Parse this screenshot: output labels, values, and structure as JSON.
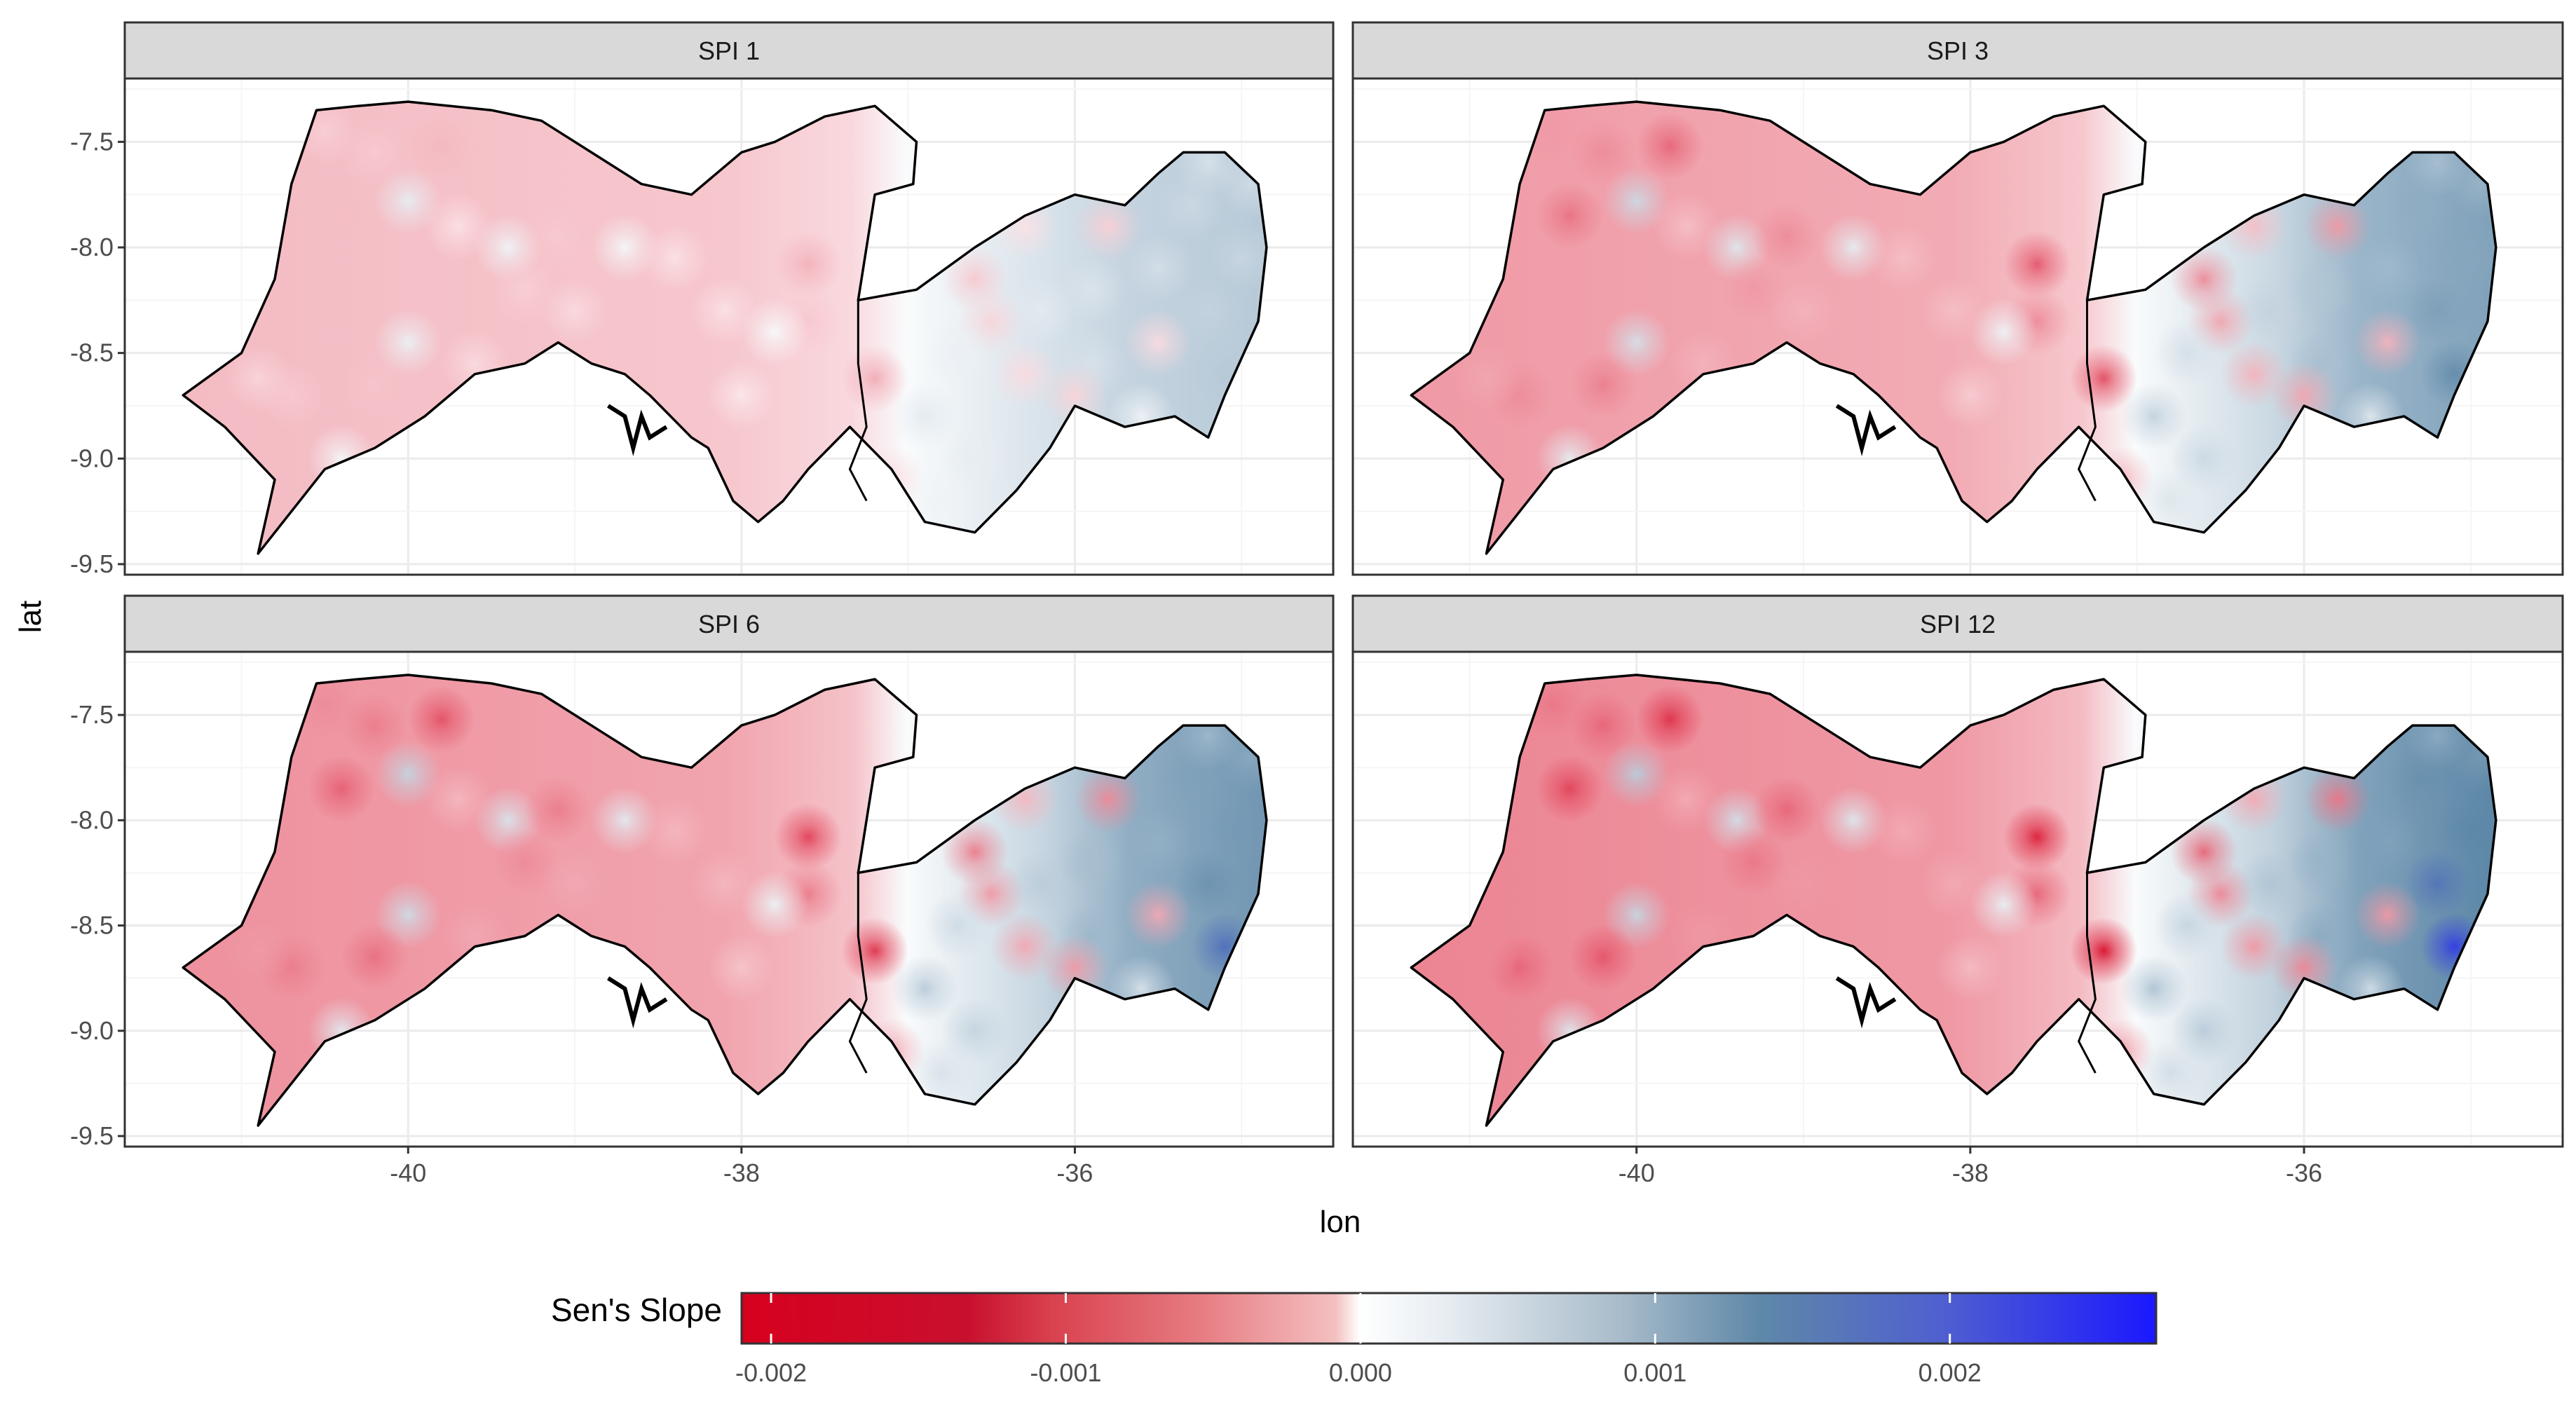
{
  "panels": [
    {
      "title": "SPI 1",
      "intensity": 0.35
    },
    {
      "title": "SPI 3",
      "intensity": 0.75
    },
    {
      "title": "SPI 6",
      "intensity": 0.85
    },
    {
      "title": "SPI 12",
      "intensity": 1.0
    }
  ],
  "axes": {
    "xlabel": "lon",
    "ylabel": "lat",
    "x_ticks": [
      "-40",
      "-38",
      "-36"
    ],
    "x_tick_values": [
      -40,
      -38,
      -36
    ],
    "y_ticks": [
      "-7.5",
      "-8.0",
      "-8.5",
      "-9.0",
      "-9.5"
    ],
    "y_tick_values": [
      -7.5,
      -8.0,
      -8.5,
      -9.0,
      -9.5
    ],
    "xlim": [
      -41.7,
      -34.45
    ],
    "ylim": [
      -9.55,
      -7.2
    ]
  },
  "legend": {
    "title": "Sen's Slope",
    "labels": [
      "-0.002",
      "-0.001",
      "0.000",
      "0.001",
      "0.002"
    ],
    "values": [
      -0.002,
      -0.001,
      0.0,
      0.001,
      0.002
    ],
    "range": [
      -0.0021,
      0.0027
    ],
    "colors": {
      "low": "#d7001e",
      "mid": "#ffffff",
      "high_mid": "#5e88a8",
      "high": "#1b18ff"
    }
  },
  "colors": {
    "strip_bg": "#d9d9d9",
    "grid_major": "#ebebeb",
    "grid_minor": "#f5f5f5",
    "border": "#333333",
    "outline": "#000000"
  },
  "map_outline": {
    "lon": [
      -40.55,
      -40.3,
      -40.0,
      -39.5,
      -39.2,
      -38.8,
      -38.6,
      -38.3,
      -38.0,
      -37.8,
      -37.5,
      -37.2,
      -36.95,
      -36.97,
      -37.2,
      -37.3,
      -36.95,
      -36.6,
      -36.3,
      -36.0,
      -35.7,
      -35.5,
      -35.35,
      -35.1,
      -34.9,
      -34.85,
      -34.9,
      -35.1,
      -35.2,
      -35.4,
      -35.7,
      -36.0,
      -36.15,
      -36.35,
      -36.6,
      -36.9,
      -37.1,
      -37.35,
      -37.6,
      -37.75,
      -37.9,
      -38.05,
      -38.2,
      -38.3,
      -38.55,
      -38.7,
      -38.9,
      -39.1,
      -39.3,
      -39.6,
      -39.9,
      -40.2,
      -40.5,
      -40.75,
      -40.9,
      -40.8,
      -41.1,
      -41.35,
      -41.0,
      -40.8,
      -40.7
    ],
    "lat": [
      -7.35,
      -7.33,
      -7.31,
      -7.35,
      -7.4,
      -7.6,
      -7.7,
      -7.75,
      -7.55,
      -7.5,
      -7.38,
      -7.33,
      -7.5,
      -7.7,
      -7.75,
      -8.25,
      -8.2,
      -8.0,
      -7.85,
      -7.75,
      -7.8,
      -7.65,
      -7.55,
      -7.55,
      -7.7,
      -8.0,
      -8.35,
      -8.7,
      -8.9,
      -8.8,
      -8.85,
      -8.75,
      -8.95,
      -9.15,
      -9.35,
      -9.3,
      -9.05,
      -8.85,
      -9.05,
      -9.2,
      -9.3,
      -9.2,
      -8.95,
      -8.9,
      -8.7,
      -8.6,
      -8.55,
      -8.45,
      -8.55,
      -8.6,
      -8.8,
      -8.95,
      -9.05,
      -9.3,
      -9.45,
      -9.1,
      -8.85,
      -8.7,
      -8.5,
      -8.15,
      -7.7
    ]
  },
  "border_line": {
    "lon": [
      -37.3,
      -37.3,
      -37.25,
      -37.35,
      -37.25
    ],
    "lat": [
      -8.25,
      -8.55,
      -8.85,
      -9.05,
      -9.2
    ]
  },
  "river": {
    "lon": [
      -38.8,
      -38.7,
      -38.65,
      -38.6,
      -38.55,
      -38.45
    ],
    "lat": [
      -8.75,
      -8.8,
      -8.95,
      -8.8,
      -8.9,
      -8.85
    ]
  },
  "stations": [
    [
      -40.5,
      -7.45,
      -0.8,
      "S1"
    ],
    [
      -40.2,
      -7.55,
      -0.9,
      "S2"
    ],
    [
      -39.8,
      -7.52,
      -1.2,
      "S3"
    ],
    [
      -40.0,
      -7.78,
      0.6,
      "S4"
    ],
    [
      -40.4,
      -7.85,
      -1.1,
      "S5"
    ],
    [
      -39.7,
      -7.9,
      -0.5,
      "S6"
    ],
    [
      -39.4,
      -8.0,
      0.4,
      "S7"
    ],
    [
      -39.1,
      -7.95,
      -0.9,
      "S8"
    ],
    [
      -39.3,
      -8.2,
      -0.8,
      "S9"
    ],
    [
      -39.0,
      -8.3,
      -0.6,
      "S10"
    ],
    [
      -38.7,
      -8.0,
      0.3,
      "S11"
    ],
    [
      -38.4,
      -8.05,
      -0.5,
      "S12"
    ],
    [
      -37.6,
      -8.08,
      -1.3,
      "S13"
    ],
    [
      -37.6,
      -8.35,
      -0.9,
      "S14"
    ],
    [
      -37.8,
      -8.4,
      0.2,
      "S15"
    ],
    [
      -38.1,
      -8.3,
      -0.5,
      "S16"
    ],
    [
      -40.0,
      -8.45,
      0.5,
      "S17"
    ],
    [
      -40.2,
      -8.65,
      -1.0,
      "S18"
    ],
    [
      -40.7,
      -8.7,
      -0.9,
      "S19"
    ],
    [
      -40.9,
      -8.62,
      -0.7,
      "S20"
    ],
    [
      -39.6,
      -8.55,
      -0.6,
      "S21"
    ],
    [
      -40.4,
      -9.0,
      0.3,
      "S22"
    ],
    [
      -38.0,
      -8.7,
      -0.4,
      "S23"
    ],
    [
      -37.2,
      -8.62,
      -1.4,
      "S24"
    ],
    [
      -37.1,
      -9.1,
      -0.6,
      "S25"
    ],
    [
      -36.6,
      -8.15,
      -0.9,
      "S26"
    ],
    [
      -36.5,
      -8.35,
      -0.7,
      "S27"
    ],
    [
      -36.7,
      -8.5,
      0.5,
      "S28"
    ],
    [
      -36.3,
      -8.6,
      -0.6,
      "S29"
    ],
    [
      -36.2,
      -8.3,
      0.7,
      "S30"
    ],
    [
      -35.9,
      -8.2,
      0.9,
      "S31"
    ],
    [
      -35.9,
      -8.55,
      1.0,
      "S32"
    ],
    [
      -35.6,
      -8.8,
      0.4,
      "S33"
    ],
    [
      -36.0,
      -8.7,
      -0.7,
      "S34"
    ],
    [
      -35.5,
      -8.1,
      1.1,
      "S35"
    ],
    [
      -35.3,
      -7.8,
      1.3,
      "S36"
    ],
    [
      -35.2,
      -8.3,
      1.5,
      "S37"
    ],
    [
      -35.1,
      -8.6,
      1.8,
      "S38"
    ],
    [
      -35.0,
      -8.05,
      1.4,
      "S39"
    ],
    [
      -34.95,
      -7.7,
      1.2,
      "S40"
    ],
    [
      -35.2,
      -7.6,
      1.0,
      "S41"
    ],
    [
      -36.3,
      -7.9,
      -0.5,
      "S42"
    ],
    [
      -36.6,
      -9.0,
      0.6,
      "S43"
    ],
    [
      -36.9,
      -8.8,
      0.7,
      "S44"
    ],
    [
      -36.8,
      -9.2,
      0.4,
      "S45"
    ],
    [
      -35.5,
      -8.45,
      -0.6,
      "S46"
    ],
    [
      -38.5,
      -7.55,
      0.8,
      "S47"
    ],
    [
      -35.8,
      -7.9,
      -0.8,
      "S48"
    ]
  ]
}
